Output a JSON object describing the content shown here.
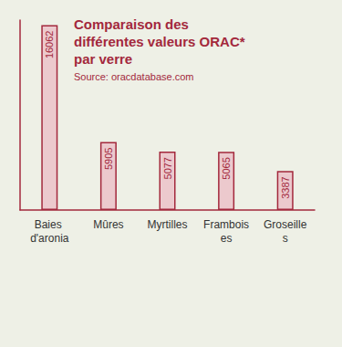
{
  "chart_data": {
    "type": "bar",
    "title": "Comparaison des différentes valeurs ORAC* par verre",
    "subtitle": "Source: oracdatabase.com",
    "categories": [
      "Baies d'aronia",
      "Mûres",
      "Myrtilles",
      "Framboises",
      "Groseilles"
    ],
    "values": [
      16062,
      5905,
      5077,
      5065,
      3387
    ],
    "color": "#ecc9cd",
    "ylim": [
      0,
      16500
    ],
    "grid": false,
    "data_labels": true,
    "tick_labels": "x"
  }
}
